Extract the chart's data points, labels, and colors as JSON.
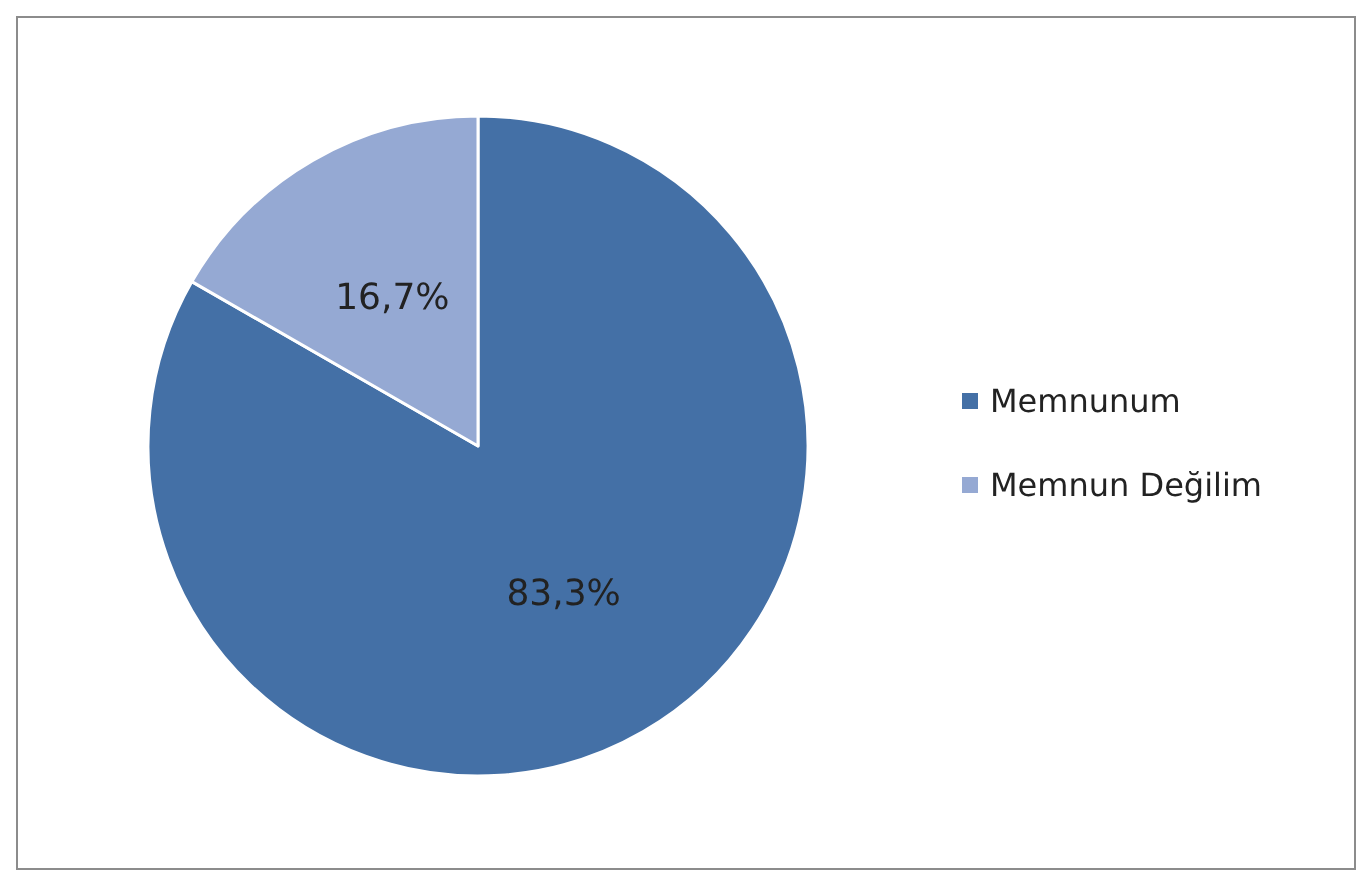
{
  "chart_data": {
    "type": "pie",
    "categories": [
      "Memnunum",
      "Memnun Değilim"
    ],
    "values": [
      83.3,
      16.7
    ],
    "colors": [
      "#4470a6",
      "#95a9d3"
    ],
    "value_labels": [
      "83,3%",
      "16,7%"
    ],
    "legend": "right"
  }
}
